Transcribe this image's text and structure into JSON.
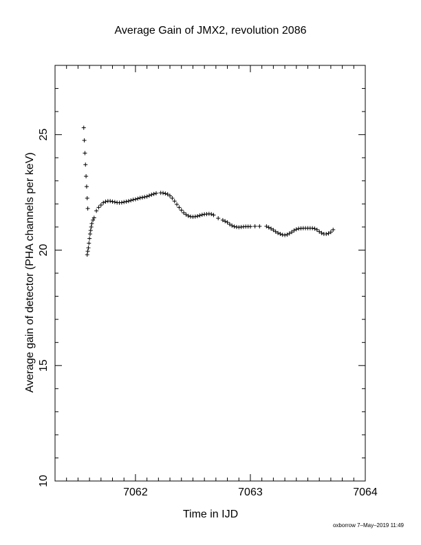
{
  "chart_data": {
    "type": "scatter",
    "title": "Average Gain of JMX2, revolution 2086",
    "xlabel": "Time in IJD",
    "ylabel": "Average gain of detector (PHA channels per keV)",
    "xlim": [
      7061.3,
      7064.0
    ],
    "ylim": [
      10,
      28
    ],
    "xticks": [
      7062,
      7063,
      7064
    ],
    "yticks": [
      10,
      15,
      20,
      25
    ],
    "marker": "+",
    "grid": false,
    "series": [
      {
        "points": [
          [
            7061.55,
            25.3
          ],
          [
            7061.555,
            24.75
          ],
          [
            7061.56,
            24.2
          ],
          [
            7061.565,
            23.7
          ],
          [
            7061.57,
            23.2
          ],
          [
            7061.575,
            22.75
          ],
          [
            7061.58,
            22.25
          ],
          [
            7061.585,
            21.8
          ],
          [
            7061.58,
            19.8
          ],
          [
            7061.585,
            19.95
          ],
          [
            7061.59,
            20.1
          ],
          [
            7061.595,
            20.3
          ],
          [
            7061.6,
            20.5
          ],
          [
            7061.605,
            20.7
          ],
          [
            7061.61,
            20.85
          ],
          [
            7061.615,
            21.0
          ],
          [
            7061.62,
            21.15
          ],
          [
            7061.63,
            21.3
          ],
          [
            7061.64,
            21.4
          ],
          [
            7061.66,
            21.7
          ],
          [
            7061.68,
            21.85
          ],
          [
            7061.7,
            21.95
          ],
          [
            7061.72,
            22.05
          ],
          [
            7061.74,
            22.1
          ],
          [
            7061.76,
            22.12
          ],
          [
            7061.78,
            22.12
          ],
          [
            7061.8,
            22.1
          ],
          [
            7061.82,
            22.08
          ],
          [
            7061.84,
            22.06
          ],
          [
            7061.86,
            22.05
          ],
          [
            7061.88,
            22.06
          ],
          [
            7061.9,
            22.08
          ],
          [
            7061.92,
            22.1
          ],
          [
            7061.94,
            22.12
          ],
          [
            7061.96,
            22.15
          ],
          [
            7061.98,
            22.18
          ],
          [
            7062.0,
            22.2
          ],
          [
            7062.02,
            22.23
          ],
          [
            7062.04,
            22.26
          ],
          [
            7062.06,
            22.28
          ],
          [
            7062.08,
            22.3
          ],
          [
            7062.1,
            22.32
          ],
          [
            7062.12,
            22.36
          ],
          [
            7062.14,
            22.4
          ],
          [
            7062.16,
            22.43
          ],
          [
            7062.18,
            22.46
          ],
          [
            7062.22,
            22.48
          ],
          [
            7062.24,
            22.47
          ],
          [
            7062.26,
            22.45
          ],
          [
            7062.28,
            22.42
          ],
          [
            7062.3,
            22.35
          ],
          [
            7062.32,
            22.25
          ],
          [
            7062.34,
            22.12
          ],
          [
            7062.36,
            21.98
          ],
          [
            7062.38,
            21.85
          ],
          [
            7062.4,
            21.73
          ],
          [
            7062.42,
            21.62
          ],
          [
            7062.44,
            21.54
          ],
          [
            7062.46,
            21.48
          ],
          [
            7062.48,
            21.45
          ],
          [
            7062.5,
            21.44
          ],
          [
            7062.52,
            21.45
          ],
          [
            7062.54,
            21.47
          ],
          [
            7062.56,
            21.5
          ],
          [
            7062.58,
            21.53
          ],
          [
            7062.6,
            21.55
          ],
          [
            7062.62,
            21.56
          ],
          [
            7062.64,
            21.57
          ],
          [
            7062.66,
            21.56
          ],
          [
            7062.68,
            21.52
          ],
          [
            7062.72,
            21.38
          ],
          [
            7062.76,
            21.3
          ],
          [
            7062.78,
            21.25
          ],
          [
            7062.8,
            21.2
          ],
          [
            7062.82,
            21.12
          ],
          [
            7062.84,
            21.06
          ],
          [
            7062.86,
            21.02
          ],
          [
            7062.88,
            21.0
          ],
          [
            7062.9,
            20.99
          ],
          [
            7062.92,
            21.0
          ],
          [
            7062.94,
            21.01
          ],
          [
            7062.96,
            21.02
          ],
          [
            7062.98,
            21.02
          ],
          [
            7063.0,
            21.02
          ],
          [
            7063.04,
            21.03
          ],
          [
            7063.08,
            21.03
          ],
          [
            7063.14,
            21.03
          ],
          [
            7063.16,
            20.98
          ],
          [
            7063.18,
            20.93
          ],
          [
            7063.2,
            20.87
          ],
          [
            7063.22,
            20.8
          ],
          [
            7063.24,
            20.74
          ],
          [
            7063.26,
            20.7
          ],
          [
            7063.28,
            20.66
          ],
          [
            7063.3,
            20.65
          ],
          [
            7063.32,
            20.67
          ],
          [
            7063.34,
            20.72
          ],
          [
            7063.36,
            20.78
          ],
          [
            7063.38,
            20.85
          ],
          [
            7063.4,
            20.9
          ],
          [
            7063.42,
            20.93
          ],
          [
            7063.44,
            20.94
          ],
          [
            7063.46,
            20.95
          ],
          [
            7063.48,
            20.95
          ],
          [
            7063.5,
            20.95
          ],
          [
            7063.52,
            20.95
          ],
          [
            7063.54,
            20.95
          ],
          [
            7063.56,
            20.93
          ],
          [
            7063.58,
            20.88
          ],
          [
            7063.6,
            20.8
          ],
          [
            7063.62,
            20.74
          ],
          [
            7063.64,
            20.7
          ],
          [
            7063.66,
            20.7
          ],
          [
            7063.68,
            20.72
          ],
          [
            7063.7,
            20.78
          ],
          [
            7063.72,
            20.88
          ]
        ]
      }
    ]
  },
  "footer": "oxborrow  7–May–2019 11:49"
}
